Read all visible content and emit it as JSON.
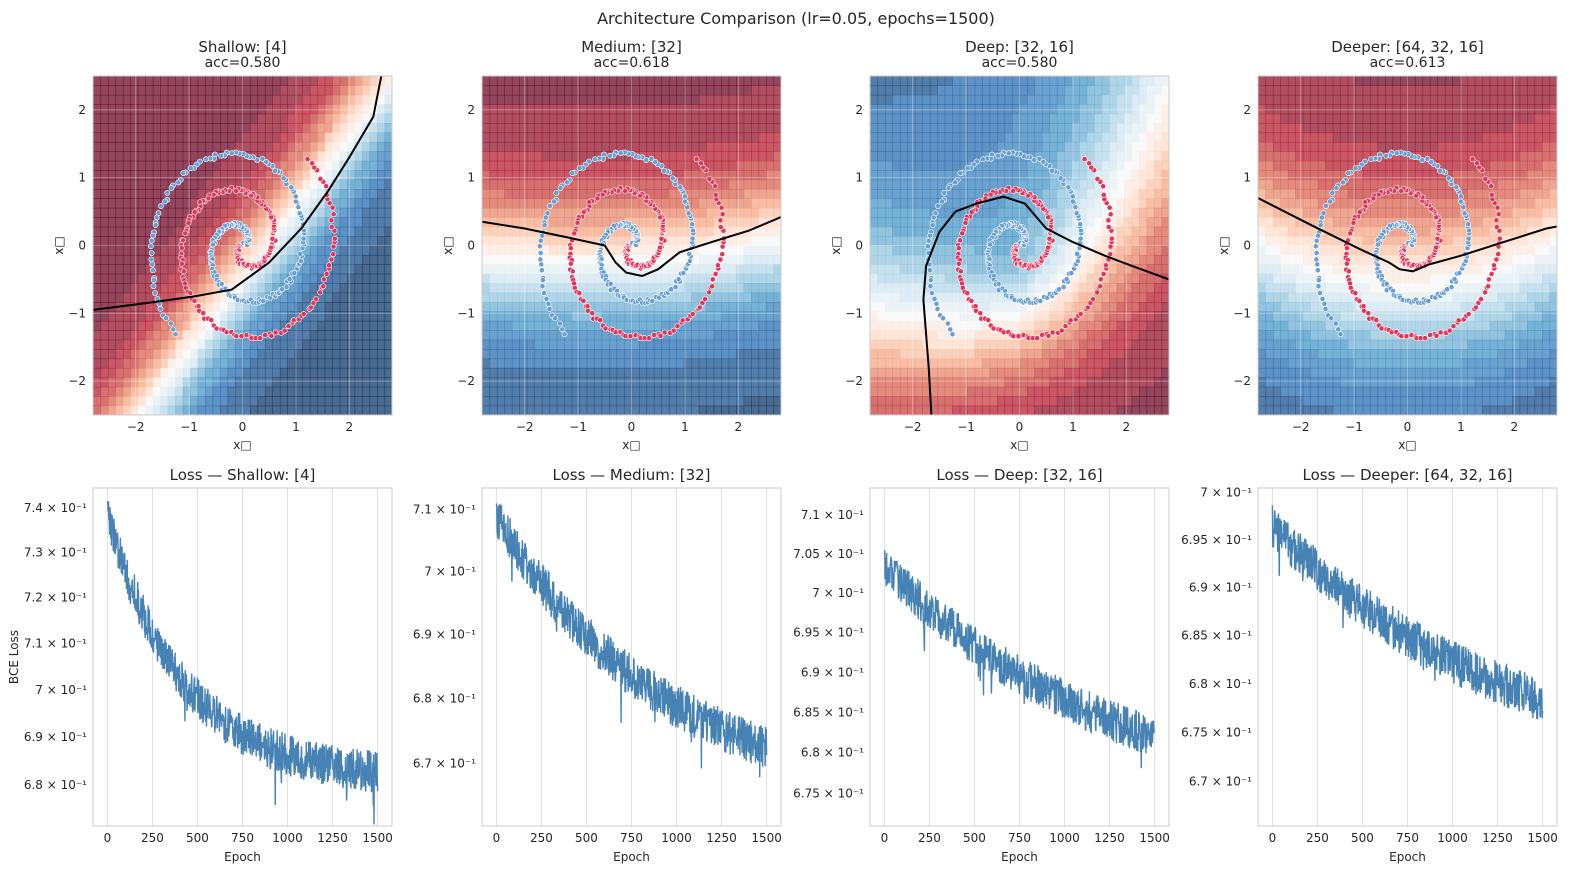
{
  "figure": {
    "suptitle": "Architecture Comparison (lr=0.05, epochs=1500)"
  },
  "colors": {
    "class0": "#6a9fd2",
    "class1": "#e4345a",
    "loss_line": "#4682b4",
    "grid": "#e0e0e0",
    "spine": "#cccccc",
    "boundary": "#000000",
    "rdbu_red": "#b2182b",
    "rdbu_light_red": "#f4a582",
    "rdbu_white": "#f7f7f7",
    "rdbu_light_blue": "#92c5de",
    "rdbu_blue": "#2166ac"
  },
  "chart_data": [
    {
      "type": "scatter",
      "panel": "decision",
      "title": "Shallow: [4]",
      "subtitle": "acc=0.580",
      "xlabel": "x□",
      "ylabel": "x□",
      "xlim": [
        -2.8,
        2.8
      ],
      "ylim": [
        -2.5,
        2.5
      ],
      "xticks": [
        -2,
        -1,
        0,
        1,
        2
      ],
      "yticks": [
        -2,
        -1,
        0,
        1,
        2
      ],
      "xtick_labels": [
        "−2",
        "−1",
        "0",
        "1",
        "2"
      ],
      "ytick_labels": [
        "−2",
        "−1",
        "0",
        "1",
        "2"
      ],
      "boundary_x": [
        -2.8,
        -1.8,
        -0.9,
        -0.2,
        0.5,
        1.1,
        1.6,
        2.0,
        2.45,
        2.6
      ],
      "boundary_y": [
        -0.95,
        -0.85,
        -0.75,
        -0.65,
        -0.25,
        0.25,
        0.8,
        1.3,
        1.9,
        2.5
      ],
      "field_mode": "linear",
      "field_params": [
        0.85,
        -1.0,
        1.3
      ],
      "dataset": "two_spirals"
    },
    {
      "type": "scatter",
      "panel": "decision",
      "title": "Medium: [32]",
      "subtitle": "acc=0.618",
      "xlabel": "x□",
      "ylabel": "x□",
      "xlim": [
        -2.8,
        2.8
      ],
      "ylim": [
        -2.5,
        2.5
      ],
      "xticks": [
        -2,
        -1,
        0,
        1,
        2
      ],
      "yticks": [
        -2,
        -1,
        0,
        1,
        2
      ],
      "xtick_labels": [
        "−2",
        "−1",
        "0",
        "1",
        "2"
      ],
      "ytick_labels": [
        "−2",
        "−1",
        "0",
        "1",
        "2"
      ],
      "boundary_x": [
        -2.8,
        -2.0,
        -1.2,
        -0.5,
        -0.3,
        -0.1,
        0.2,
        0.5,
        0.9,
        1.5,
        2.2,
        2.8
      ],
      "boundary_y": [
        0.35,
        0.25,
        0.12,
        0.0,
        -0.25,
        -0.4,
        -0.45,
        -0.35,
        -0.1,
        0.05,
        0.22,
        0.42
      ],
      "field_mode": "medium",
      "field_params": [
        0.0,
        0.0,
        0.0
      ],
      "dataset": "two_spirals"
    },
    {
      "type": "scatter",
      "panel": "decision",
      "title": "Deep: [32, 16]",
      "subtitle": "acc=0.580",
      "xlabel": "x□",
      "ylabel": "x□",
      "xlim": [
        -2.8,
        2.8
      ],
      "ylim": [
        -2.5,
        2.5
      ],
      "xticks": [
        -2,
        -1,
        0,
        1,
        2
      ],
      "yticks": [
        -2,
        -1,
        0,
        1,
        2
      ],
      "xtick_labels": [
        "−2",
        "−1",
        "0",
        "1",
        "2"
      ],
      "ytick_labels": [
        "−2",
        "−1",
        "0",
        "1",
        "2"
      ],
      "boundary_x": [
        -1.65,
        -1.7,
        -1.8,
        -1.75,
        -1.5,
        -1.2,
        -0.8,
        -0.3,
        0.1,
        0.5,
        1.0,
        1.6,
        2.1,
        2.8
      ],
      "boundary_y": [
        -2.5,
        -1.8,
        -0.8,
        -0.3,
        0.2,
        0.5,
        0.62,
        0.72,
        0.62,
        0.25,
        0.05,
        -0.15,
        -0.3,
        -0.5
      ],
      "field_mode": "deep",
      "field_params": [
        0.0,
        0.0,
        0.0
      ],
      "dataset": "two_spirals"
    },
    {
      "type": "scatter",
      "panel": "decision",
      "title": "Deeper: [64, 32, 16]",
      "subtitle": "acc=0.613",
      "xlabel": "x□",
      "ylabel": "x□",
      "xlim": [
        -2.8,
        2.8
      ],
      "ylim": [
        -2.5,
        2.5
      ],
      "xticks": [
        -2,
        -1,
        0,
        1,
        2
      ],
      "yticks": [
        -2,
        -1,
        0,
        1,
        2
      ],
      "xtick_labels": [
        "−2",
        "−1",
        "0",
        "1",
        "2"
      ],
      "ytick_labels": [
        "−2",
        "−1",
        "0",
        "1",
        "2"
      ],
      "boundary_x": [
        -2.8,
        -1.8,
        -0.9,
        -0.35,
        -0.15,
        0.1,
        0.4,
        1.0,
        1.8,
        2.6,
        2.8
      ],
      "boundary_y": [
        0.7,
        0.3,
        -0.05,
        -0.25,
        -0.35,
        -0.38,
        -0.28,
        -0.15,
        0.05,
        0.25,
        0.28
      ],
      "field_mode": "deeper",
      "field_params": [
        0.0,
        0.0,
        0.0
      ],
      "dataset": "two_spirals"
    },
    {
      "type": "line",
      "panel": "loss",
      "title": "Loss — Shallow: [4]",
      "xlabel": "Epoch",
      "ylabel": "BCE Loss",
      "yscale": "log",
      "xlim": [
        -80,
        1580
      ],
      "ylim": [
        0.6715,
        0.7445
      ],
      "xticks": [
        0,
        250,
        500,
        750,
        1000,
        1250,
        1500
      ],
      "xtick_labels": [
        "0",
        "250",
        "500",
        "750",
        "1000",
        "1250",
        "1500"
      ],
      "yticks": [
        0.68,
        0.69,
        0.7,
        0.71,
        0.72,
        0.73,
        0.74
      ],
      "ytick_labels": [
        "6.8 × 10⁻¹",
        "6.9 × 10⁻¹",
        "7 × 10⁻¹",
        "7.1 × 10⁻¹",
        "7.2 × 10⁻¹",
        "7.3 × 10⁻¹",
        "7.4 × 10⁻¹"
      ],
      "curve": {
        "start": 0.738,
        "plateau": 0.681,
        "tau": 420,
        "noise": 0.0055,
        "epochs": 1500
      },
      "seed": 11
    },
    {
      "type": "line",
      "panel": "loss",
      "title": "Loss — Medium: [32]",
      "xlabel": "Epoch",
      "ylabel": "",
      "yscale": "log",
      "xlim": [
        -80,
        1580
      ],
      "ylim": [
        0.6605,
        0.7135
      ],
      "xticks": [
        0,
        250,
        500,
        750,
        1000,
        1250,
        1500
      ],
      "xtick_labels": [
        "0",
        "250",
        "500",
        "750",
        "1000",
        "1250",
        "1500"
      ],
      "yticks": [
        0.67,
        0.68,
        0.69,
        0.7,
        0.71
      ],
      "ytick_labels": [
        "6.7 × 10⁻¹",
        "6.8 × 10⁻¹",
        "6.9 × 10⁻¹",
        "7 × 10⁻¹",
        "7.1 × 10⁻¹"
      ],
      "curve": {
        "start": 0.709,
        "plateau": 0.664,
        "tau": 900,
        "noise": 0.0042,
        "epochs": 1500
      },
      "seed": 23
    },
    {
      "type": "line",
      "panel": "loss",
      "title": "Loss — Deep: [32, 16]",
      "xlabel": "Epoch",
      "ylabel": "",
      "yscale": "log",
      "xlim": [
        -80,
        1580
      ],
      "ylim": [
        0.671,
        0.7135
      ],
      "xticks": [
        0,
        250,
        500,
        750,
        1000,
        1250,
        1500
      ],
      "xtick_labels": [
        "0",
        "250",
        "500",
        "750",
        "1000",
        "1250",
        "1500"
      ],
      "yticks": [
        0.675,
        0.68,
        0.685,
        0.69,
        0.695,
        0.7,
        0.705,
        0.71
      ],
      "ytick_labels": [
        "6.75 × 10⁻¹",
        "6.8 × 10⁻¹",
        "6.85 × 10⁻¹",
        "6.9 × 10⁻¹",
        "6.95 × 10⁻¹",
        "7 × 10⁻¹",
        "7.05 × 10⁻¹",
        "7.1 × 10⁻¹"
      ],
      "curve": {
        "start": 0.7035,
        "plateau": 0.672,
        "tau": 1300,
        "noise": 0.0032,
        "epochs": 1500
      },
      "seed": 37
    },
    {
      "type": "line",
      "panel": "loss",
      "title": "Loss — Deeper: [64, 32, 16]",
      "xlabel": "Epoch",
      "ylabel": "",
      "yscale": "log",
      "xlim": [
        -80,
        1580
      ],
      "ylim": [
        0.6655,
        0.7005
      ],
      "xticks": [
        0,
        250,
        500,
        750,
        1000,
        1250,
        1500
      ],
      "xtick_labels": [
        "0",
        "250",
        "500",
        "750",
        "1000",
        "1250",
        "1500"
      ],
      "yticks": [
        0.67,
        0.675,
        0.68,
        0.685,
        0.69,
        0.695,
        0.7
      ],
      "ytick_labels": [
        "6.7 × 10⁻¹",
        "6.75 × 10⁻¹",
        "6.8 × 10⁻¹",
        "6.85 × 10⁻¹",
        "6.9 × 10⁻¹",
        "6.95 × 10⁻¹",
        "7 × 10⁻¹"
      ],
      "curve": {
        "start": 0.6965,
        "plateau": 0.67,
        "tau": 1300,
        "noise": 0.0028,
        "epochs": 1500
      },
      "seed": 51
    }
  ]
}
